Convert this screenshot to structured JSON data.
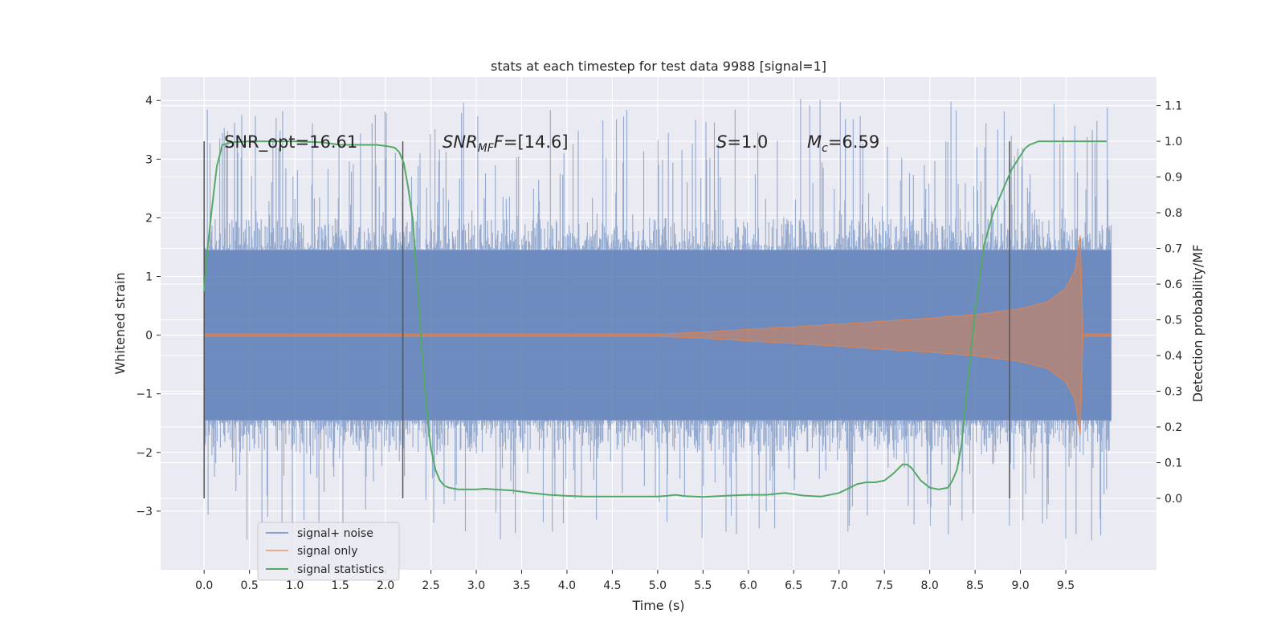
{
  "chart_data": {
    "type": "line",
    "title": "stats at each timestep for test data 9988 [signal=1]",
    "xlabel": "Time (s)",
    "ylabel": "Whitened strain",
    "ylabel_right": "Detection probability/MF",
    "xlim": [
      -0.48,
      10.5
    ],
    "ylim": [
      -4.0,
      4.4
    ],
    "ylim_right": [
      -0.2,
      1.18
    ],
    "xticks": [
      "0.0",
      "0.5",
      "1.0",
      "1.5",
      "2.0",
      "2.5",
      "3.0",
      "3.5",
      "4.0",
      "4.5",
      "5.0",
      "5.5",
      "6.0",
      "6.5",
      "7.0",
      "7.5",
      "8.0",
      "8.5",
      "9.0",
      "9.5"
    ],
    "yticks": [
      "−3",
      "−2",
      "−1",
      "0",
      "1",
      "2",
      "3",
      "4"
    ],
    "yticks_right": [
      "0.0",
      "0.1",
      "0.2",
      "0.3",
      "0.4",
      "0.5",
      "0.6",
      "0.7",
      "0.8",
      "0.9",
      "1.0",
      "1.1"
    ],
    "grid": true,
    "legend_position": "lower-left",
    "annotations": {
      "snr_opt": "SNR_opt=16.61",
      "snr_mf_main": "SNR",
      "snr_mf_sub": "MF",
      "snr_mf_value": "=[14.6]",
      "s_main": "S",
      "s_value": "=1.0",
      "mc_main": "M",
      "mc_sub": "c",
      "mc_value": "=6.59"
    },
    "vertical_lines_x": [
      0.0,
      2.19,
      8.88
    ],
    "vertical_lines_y_range": [
      0.0,
      1.0
    ],
    "series": [
      {
        "name": "signal+ noise",
        "color": "#4c72b0",
        "x_range": [
          0.0,
          10.0
        ],
        "bulk_amplitude": 1.45,
        "spike_amplitude_max": 4.05
      },
      {
        "name": "signal only",
        "color": "#dd8452",
        "envelope_x": [
          0.0,
          5.0,
          5.5,
          6.0,
          6.5,
          7.0,
          7.5,
          8.0,
          8.5,
          9.0,
          9.3,
          9.5,
          9.6,
          9.66,
          9.69,
          10.0
        ],
        "envelope_y": [
          0.02,
          0.02,
          0.05,
          0.1,
          0.14,
          0.19,
          0.24,
          0.29,
          0.35,
          0.45,
          0.57,
          0.8,
          1.1,
          1.7,
          0.02,
          0.02
        ]
      },
      {
        "name": "signal statistics",
        "color": "#55a868",
        "x": [
          0.0,
          0.03,
          0.08,
          0.14,
          0.2,
          0.3,
          0.5,
          0.8,
          1.0,
          1.3,
          1.5,
          1.7,
          1.9,
          2.0,
          2.05,
          2.1,
          2.15,
          2.2,
          2.25,
          2.3,
          2.35,
          2.4,
          2.45,
          2.5,
          2.55,
          2.6,
          2.65,
          2.7,
          2.8,
          2.9,
          3.0,
          3.1,
          3.2,
          3.4,
          3.6,
          3.8,
          4.0,
          4.2,
          4.5,
          4.8,
          5.0,
          5.1,
          5.2,
          5.3,
          5.5,
          5.8,
          6.0,
          6.2,
          6.4,
          6.5,
          6.6,
          6.8,
          7.0,
          7.2,
          7.3,
          7.4,
          7.5,
          7.6,
          7.7,
          7.75,
          7.8,
          7.9,
          8.0,
          8.1,
          8.2,
          8.25,
          8.3,
          8.35,
          8.4,
          8.45,
          8.5,
          8.55,
          8.6,
          8.7,
          8.8,
          8.9,
          9.0,
          9.05,
          9.1,
          9.2,
          9.3,
          9.5,
          9.7,
          9.95
        ],
        "y": [
          0.58,
          0.68,
          0.8,
          0.93,
          0.99,
          0.997,
          1.0,
          1.0,
          1.0,
          0.997,
          0.99,
          0.99,
          0.99,
          0.987,
          0.985,
          0.982,
          0.97,
          0.94,
          0.87,
          0.78,
          0.6,
          0.42,
          0.26,
          0.14,
          0.08,
          0.05,
          0.035,
          0.03,
          0.025,
          0.025,
          0.025,
          0.027,
          0.025,
          0.022,
          0.015,
          0.01,
          0.007,
          0.005,
          0.005,
          0.005,
          0.005,
          0.007,
          0.01,
          0.006,
          0.004,
          0.008,
          0.01,
          0.01,
          0.015,
          0.012,
          0.008,
          0.005,
          0.015,
          0.04,
          0.045,
          0.045,
          0.05,
          0.07,
          0.095,
          0.095,
          0.085,
          0.05,
          0.03,
          0.025,
          0.03,
          0.05,
          0.08,
          0.15,
          0.28,
          0.4,
          0.52,
          0.62,
          0.71,
          0.8,
          0.86,
          0.92,
          0.96,
          0.98,
          0.99,
          1.0,
          1.0,
          1.0,
          1.0,
          1.0
        ]
      }
    ]
  }
}
